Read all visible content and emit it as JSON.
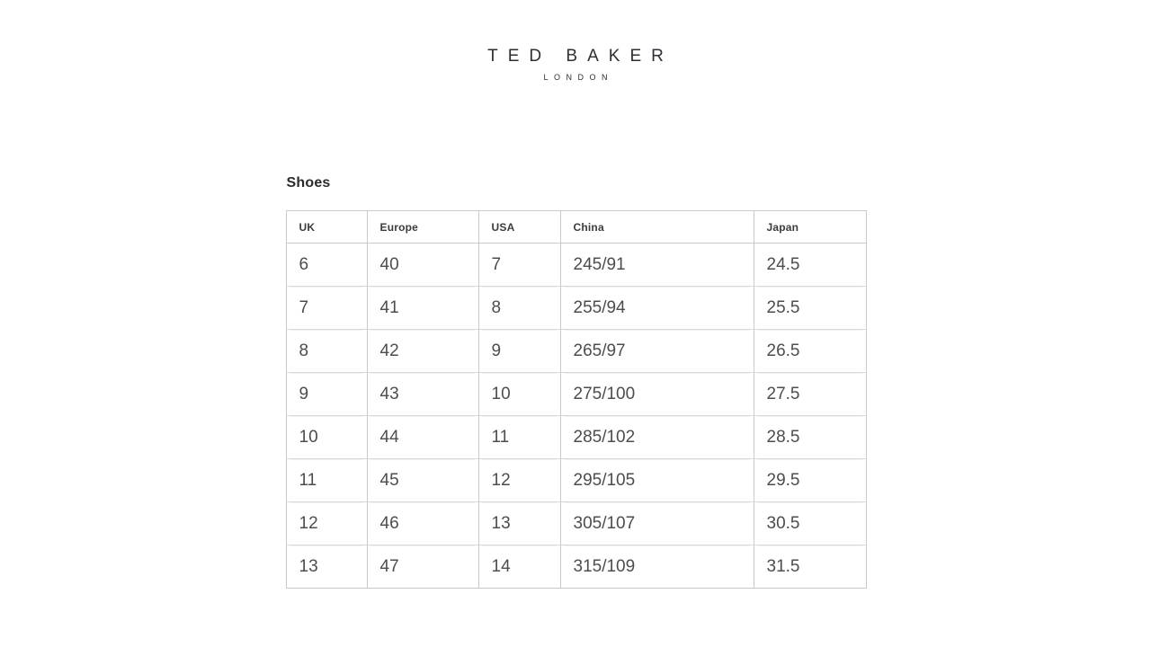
{
  "brand": {
    "logo_primary": "TED BAKER",
    "logo_secondary": "LONDON"
  },
  "section": {
    "title": "Shoes"
  },
  "table": {
    "columns": [
      "UK",
      "Europe",
      "USA",
      "China",
      "Japan"
    ],
    "rows": [
      [
        "6",
        "40",
        "7",
        "245/91",
        "24.5"
      ],
      [
        "7",
        "41",
        "8",
        "255/94",
        "25.5"
      ],
      [
        "8",
        "42",
        "9",
        "265/97",
        "26.5"
      ],
      [
        "9",
        "43",
        "10",
        "275/100",
        "27.5"
      ],
      [
        "10",
        "44",
        "11",
        "285/102",
        "28.5"
      ],
      [
        "11",
        "45",
        "12",
        "295/105",
        "29.5"
      ],
      [
        "12",
        "46",
        "13",
        "305/107",
        "30.5"
      ],
      [
        "13",
        "47",
        "14",
        "315/109",
        "31.5"
      ]
    ]
  },
  "colors": {
    "background": "#ffffff",
    "logo_text": "#2e2e36",
    "heading_text": "#2b2b2b",
    "header_cell_text": "#3c3c3c",
    "data_cell_text": "#4d4d4d",
    "grid_border": "#c9c9c9",
    "row_border": "#d8d8d8"
  }
}
